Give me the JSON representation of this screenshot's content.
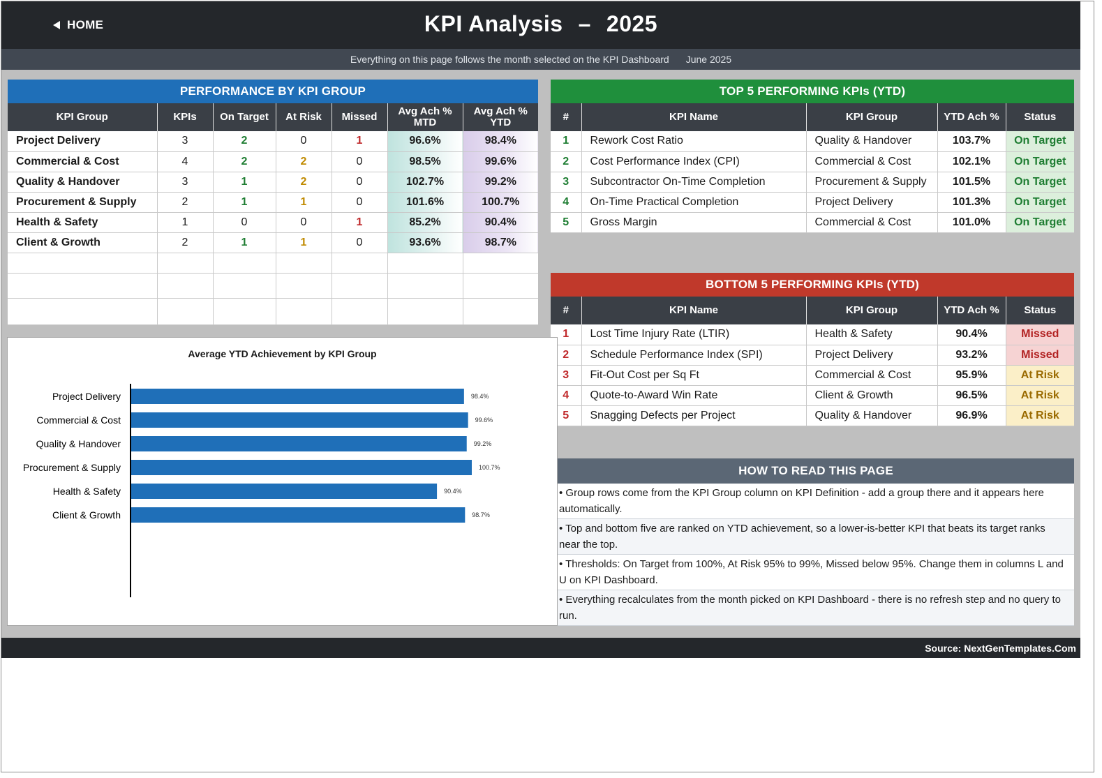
{
  "header": {
    "home_label": "HOME",
    "title_left": "KPI Analysis",
    "title_sep": "–",
    "title_year": "2025"
  },
  "subheader": {
    "note": "Everything on this page follows the month selected on the KPI Dashboard",
    "month": "June 2025"
  },
  "performance": {
    "title": "PERFORMANCE BY KPI GROUP",
    "columns": [
      "KPI Group",
      "KPIs",
      "On Target",
      "At Risk",
      "Missed",
      "Avg Ach % MTD",
      "Avg Ach % YTD"
    ],
    "rows": [
      {
        "group": "Project Delivery",
        "kpis": "3",
        "on_target": "2",
        "at_risk": "0",
        "missed": "1",
        "mtd": "96.6%",
        "ytd": "98.4%"
      },
      {
        "group": "Commercial & Cost",
        "kpis": "4",
        "on_target": "2",
        "at_risk": "2",
        "missed": "0",
        "mtd": "98.5%",
        "ytd": "99.6%"
      },
      {
        "group": "Quality & Handover",
        "kpis": "3",
        "on_target": "1",
        "at_risk": "2",
        "missed": "0",
        "mtd": "102.7%",
        "ytd": "99.2%"
      },
      {
        "group": "Procurement & Supply",
        "kpis": "2",
        "on_target": "1",
        "at_risk": "1",
        "missed": "0",
        "mtd": "101.6%",
        "ytd": "100.7%"
      },
      {
        "group": "Health & Safety",
        "kpis": "1",
        "on_target": "0",
        "at_risk": "0",
        "missed": "1",
        "mtd": "85.2%",
        "ytd": "90.4%"
      },
      {
        "group": "Client & Growth",
        "kpis": "2",
        "on_target": "1",
        "at_risk": "1",
        "missed": "0",
        "mtd": "93.6%",
        "ytd": "98.7%"
      }
    ]
  },
  "top5": {
    "title": "TOP 5 PERFORMING KPIs  (YTD)",
    "columns": [
      "#",
      "KPI Name",
      "KPI Group",
      "YTD Ach %",
      "Status"
    ],
    "rows": [
      {
        "rank": "1",
        "name": "Rework Cost Ratio",
        "group": "Quality & Handover",
        "ytd": "103.7%",
        "status": "On Target"
      },
      {
        "rank": "2",
        "name": "Cost Performance Index (CPI)",
        "group": "Commercial & Cost",
        "ytd": "102.1%",
        "status": "On Target"
      },
      {
        "rank": "3",
        "name": "Subcontractor On-Time Completion",
        "group": "Procurement & Supply",
        "ytd": "101.5%",
        "status": "On Target"
      },
      {
        "rank": "4",
        "name": "On-Time Practical Completion",
        "group": "Project Delivery",
        "ytd": "101.3%",
        "status": "On Target"
      },
      {
        "rank": "5",
        "name": "Gross Margin",
        "group": "Commercial & Cost",
        "ytd": "101.0%",
        "status": "On Target"
      }
    ]
  },
  "bottom5": {
    "title": "BOTTOM 5 PERFORMING KPIs  (YTD)",
    "columns": [
      "#",
      "KPI Name",
      "KPI Group",
      "YTD Ach %",
      "Status"
    ],
    "rows": [
      {
        "rank": "1",
        "name": "Lost Time Injury Rate (LTIR)",
        "group": "Health & Safety",
        "ytd": "90.4%",
        "status": "Missed"
      },
      {
        "rank": "2",
        "name": "Schedule Performance Index (SPI)",
        "group": "Project Delivery",
        "ytd": "93.2%",
        "status": "Missed"
      },
      {
        "rank": "3",
        "name": "Fit-Out Cost per Sq Ft",
        "group": "Commercial & Cost",
        "ytd": "95.9%",
        "status": "At Risk"
      },
      {
        "rank": "4",
        "name": "Quote-to-Award Win Rate",
        "group": "Client & Growth",
        "ytd": "96.5%",
        "status": "At Risk"
      },
      {
        "rank": "5",
        "name": "Snagging Defects per Project",
        "group": "Quality & Handover",
        "ytd": "96.9%",
        "status": "At Risk"
      }
    ]
  },
  "howto": {
    "title": "HOW TO READ THIS PAGE",
    "items": [
      "•  Group rows come from the KPI Group column on KPI Definition - add a group there and it appears here automatically.",
      "•  Top and bottom five are ranked on YTD achievement, so a lower-is-better KPI that beats its target ranks near the top.",
      "•  Thresholds: On Target from 100%, At Risk 95% to 99%, Missed below 95%. Change them in columns L and U on KPI Dashboard.",
      "•  Everything recalculates from the month picked on KPI Dashboard - there is no refresh step and no query to run."
    ]
  },
  "footer": {
    "source": "Source: NextGenTemplates.Com"
  },
  "chart_data": {
    "type": "bar",
    "orientation": "horizontal",
    "title": "Average YTD Achievement by KPI Group",
    "categories": [
      "Project Delivery",
      "Commercial & Cost",
      "Quality & Handover",
      "Procurement & Supply",
      "Health & Safety",
      "Client & Growth"
    ],
    "values": [
      98.4,
      99.6,
      99.2,
      100.7,
      90.4,
      98.7
    ],
    "data_labels": [
      "98.4%",
      "99.6%",
      "99.2%",
      "100.7%",
      "90.4%",
      "98.7%"
    ],
    "xlim": [
      0,
      100.7
    ],
    "bar_color": "#1f6fb8",
    "grid": false,
    "legend": "none"
  },
  "colors": {
    "topbar": "#24272b",
    "perf_banner": "#1f6fb8",
    "top_banner": "#1f8f3c",
    "bottom_banner": "#c0392b",
    "howto_banner": "#5b6775",
    "on_target": "#1e7d32",
    "at_risk": "#c08a00",
    "missed": "#c0292b"
  }
}
